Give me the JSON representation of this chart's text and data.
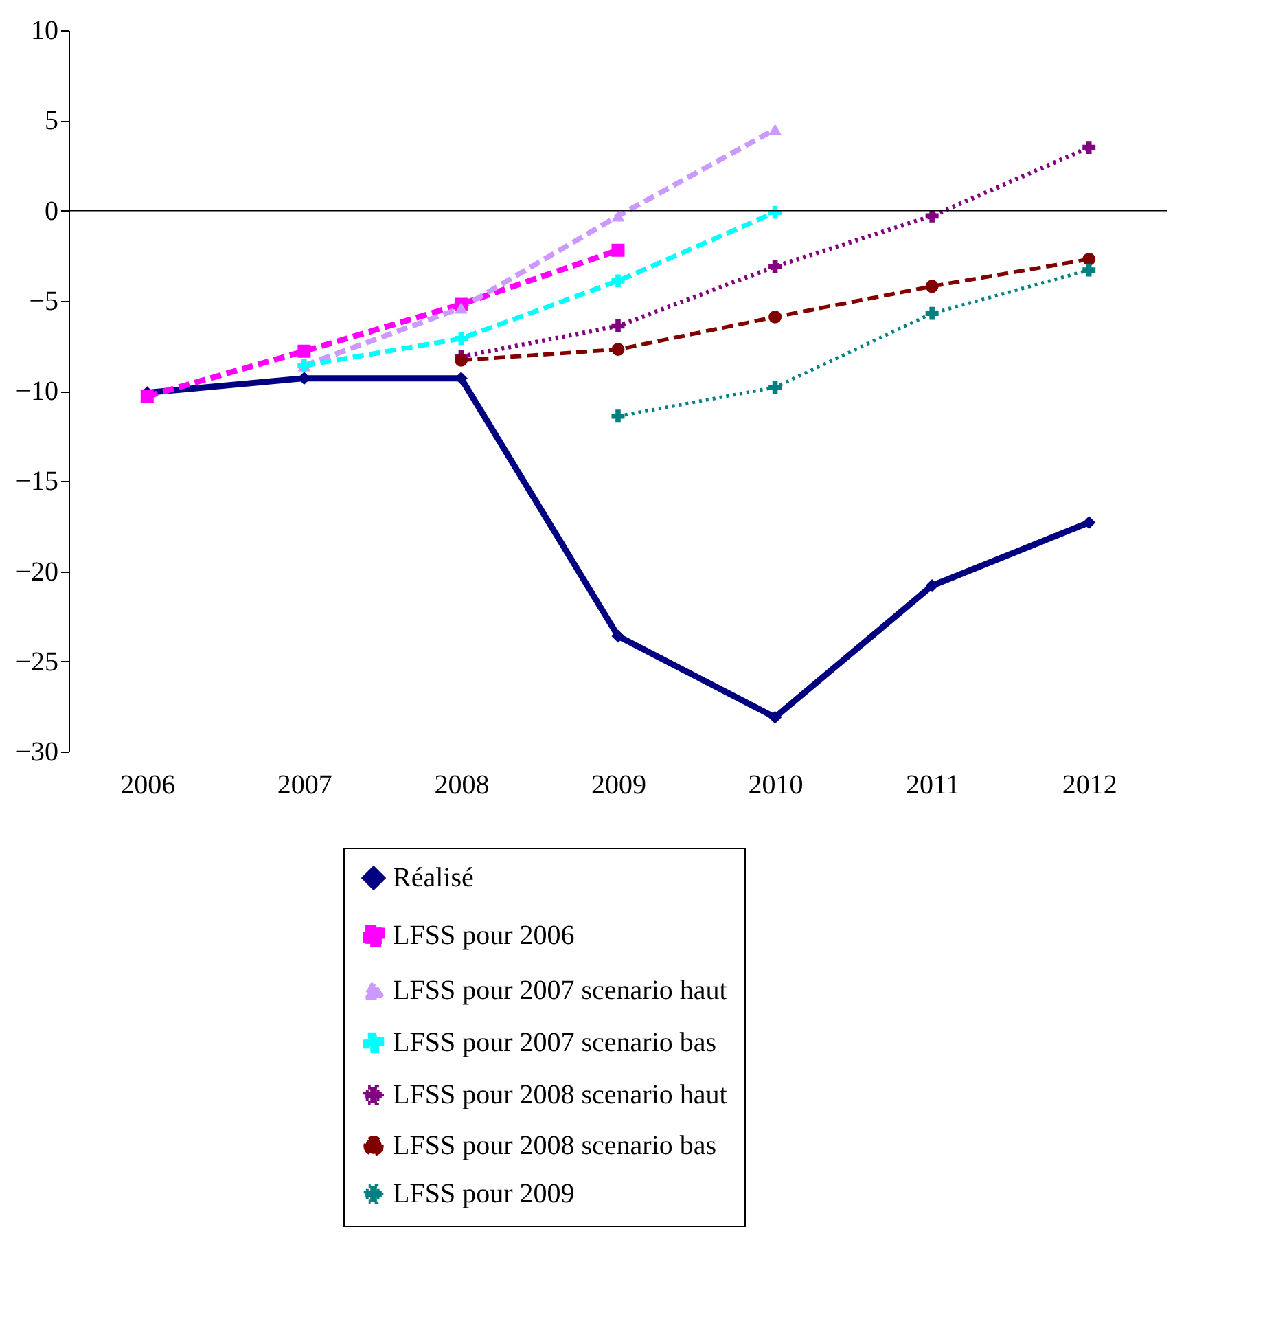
{
  "chart_data": {
    "type": "line",
    "categories": [
      "2006",
      "2007",
      "2008",
      "2009",
      "2010",
      "2011",
      "2012"
    ],
    "ylim": [
      -30,
      10
    ],
    "yticks": [
      -30,
      -25,
      -20,
      -15,
      -10,
      -5,
      0,
      5,
      10
    ],
    "grid": false,
    "legend": "bottom",
    "ref_lines": [
      {
        "axis": "y",
        "value": 0,
        "color": "#000000"
      }
    ],
    "series": [
      {
        "name": "Réalisé",
        "color": "#000080",
        "marker": "diamond",
        "line_style": "solid",
        "values": [
          -10.1,
          -9.3,
          -9.3,
          -23.6,
          -28.1,
          -20.8,
          -17.3
        ]
      },
      {
        "name": "LFSS pour 2006",
        "color": "#ff00ff",
        "marker": "square",
        "line_style": "dashed",
        "values": [
          -10.3,
          -7.8,
          -5.2,
          -2.2,
          null,
          null,
          null
        ]
      },
      {
        "name": "LFSS pour 2007 scenario haut",
        "color": "#cc99ff",
        "marker": "triangle",
        "line_style": "dashed",
        "values": [
          null,
          -8.6,
          -5.4,
          -0.3,
          4.5,
          null,
          null
        ]
      },
      {
        "name": "LFSS pour 2007 scenario bas",
        "color": "#00ffff",
        "marker": "cross",
        "line_style": "dashed",
        "values": [
          null,
          -8.6,
          -7.1,
          -3.9,
          -0.1,
          null,
          null
        ]
      },
      {
        "name": "LFSS pour 2008 scenario haut",
        "color": "#800080",
        "marker": "cross",
        "line_style": "dotted",
        "values": [
          null,
          null,
          -8.1,
          -6.4,
          -3.1,
          -0.3,
          3.5
        ]
      },
      {
        "name": "LFSS pour 2008 scenario bas",
        "color": "#800000",
        "marker": "circle",
        "line_style": "dashed",
        "values": [
          null,
          null,
          -8.3,
          -7.7,
          -5.9,
          -4.2,
          -2.7
        ]
      },
      {
        "name": "LFSS pour 2009",
        "color": "#008080",
        "marker": "cross",
        "line_style": "dotted",
        "values": [
          null,
          null,
          null,
          -11.4,
          -9.8,
          -5.7,
          -3.3
        ]
      }
    ]
  }
}
